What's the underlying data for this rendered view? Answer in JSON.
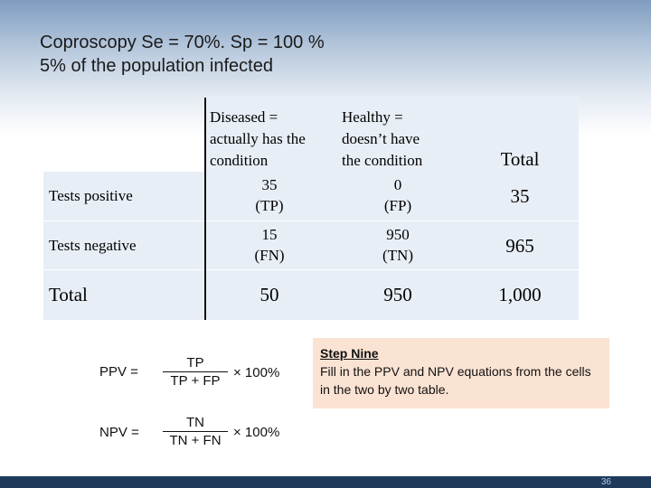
{
  "title": {
    "line1": "Coproscopy Se = 70%. Sp = 100 %",
    "line2": "5% of the population infected"
  },
  "table": {
    "headers": {
      "diseased": [
        "Diseased =",
        "actually has the",
        "condition"
      ],
      "healthy": [
        "Healthy =",
        "doesn’t have",
        "the condition"
      ],
      "total": "Total"
    },
    "rows": [
      {
        "label": "Tests positive",
        "diseased": [
          "35",
          "(TP)"
        ],
        "healthy": [
          "0",
          "(FP)"
        ],
        "total": "35"
      },
      {
        "label": "Tests negative",
        "diseased": [
          "15",
          "(FN)"
        ],
        "healthy": [
          "950",
          "(TN)"
        ],
        "total": "965"
      }
    ],
    "totals": {
      "label": "Total",
      "diseased": "50",
      "healthy": "950",
      "total": "1,000"
    }
  },
  "equations": {
    "ppv": {
      "label": "PPV =",
      "numerator": "TP",
      "denominator": "TP + FP",
      "multiplier": "× 100%"
    },
    "npv": {
      "label": "NPV =",
      "numerator": "TN",
      "denominator": "TN + FN",
      "multiplier": "× 100%"
    }
  },
  "step": {
    "title": "Step Nine",
    "text": "Fill in the PPV and NPV equations from the cells in the two by two table."
  },
  "page_number": "36",
  "colors": {
    "header_gradient_top": "#7e9cc0",
    "table_column_fill": "#e8eef6",
    "step_box": "#fbe3d3",
    "footer_bar": "#1f3b5c"
  }
}
